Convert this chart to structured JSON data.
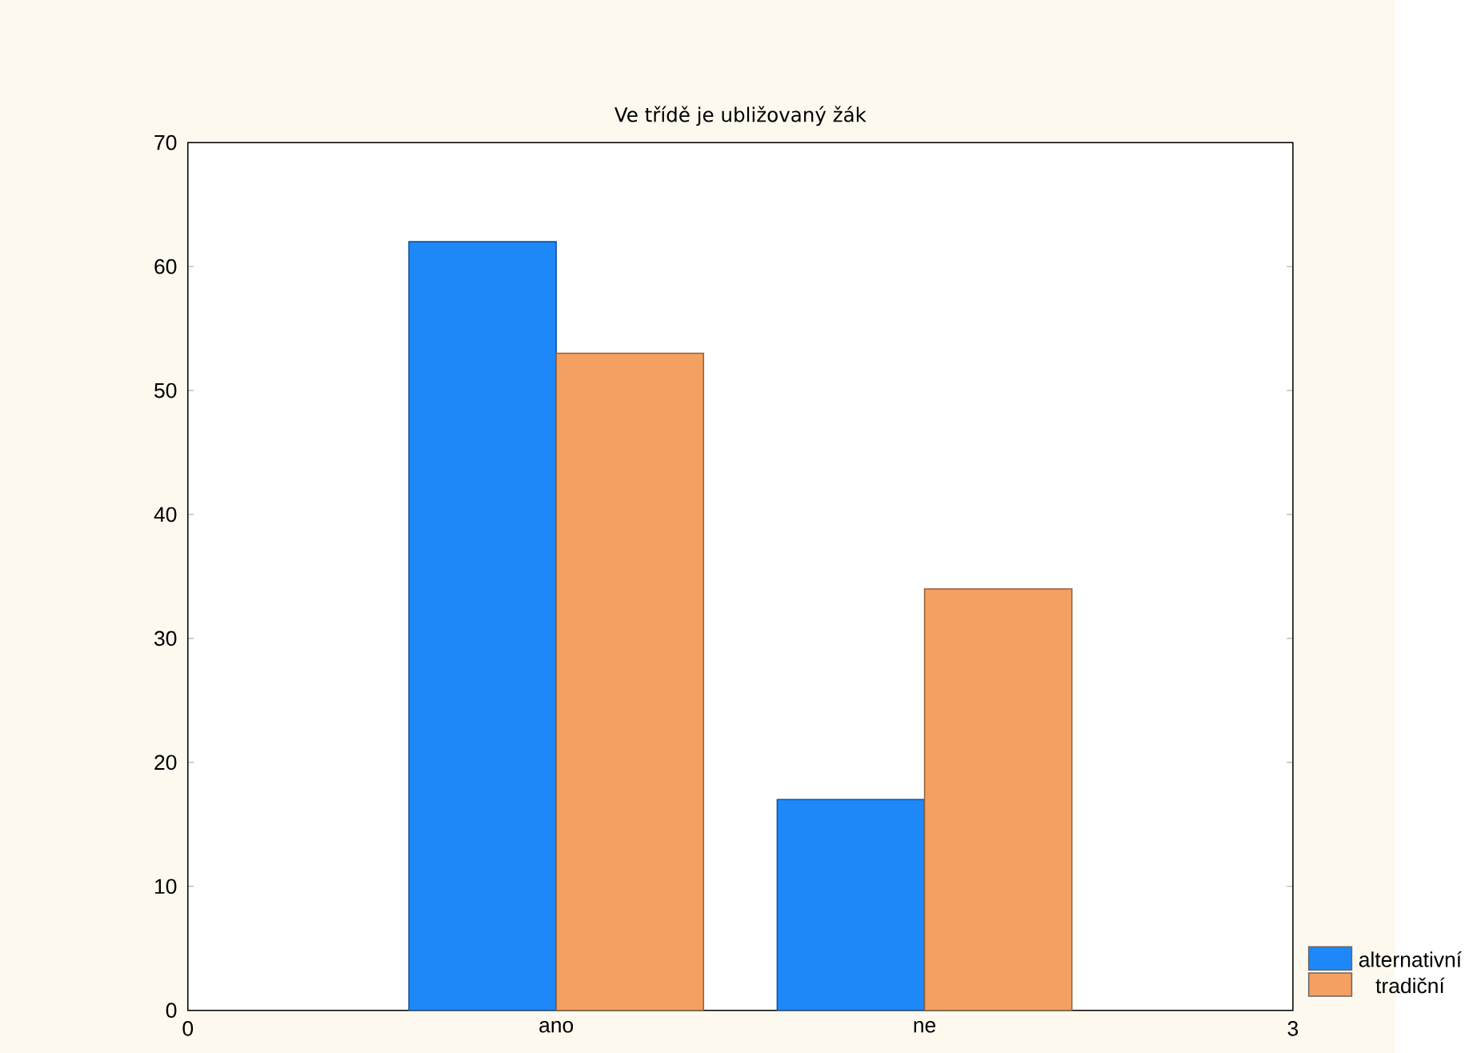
{
  "chart_data": {
    "type": "bar",
    "title": "Ve třídě je ubližovaný žák",
    "x": [
      1,
      2
    ],
    "xlim": [
      0,
      3
    ],
    "xticks": [
      0,
      {
        "value": 1,
        "label": "ano"
      },
      {
        "value": 2,
        "label": "ne"
      },
      3
    ],
    "ylim": [
      0,
      70
    ],
    "yticks": [
      0,
      10,
      20,
      30,
      40,
      50,
      60,
      70
    ],
    "series": [
      {
        "name": "alternativní",
        "color": "#1e88f8",
        "values": [
          62,
          17
        ]
      },
      {
        "name": "tradiční",
        "color": "#f4a060",
        "values": [
          53,
          34
        ]
      }
    ],
    "grid": false,
    "legend": "bottom right"
  }
}
